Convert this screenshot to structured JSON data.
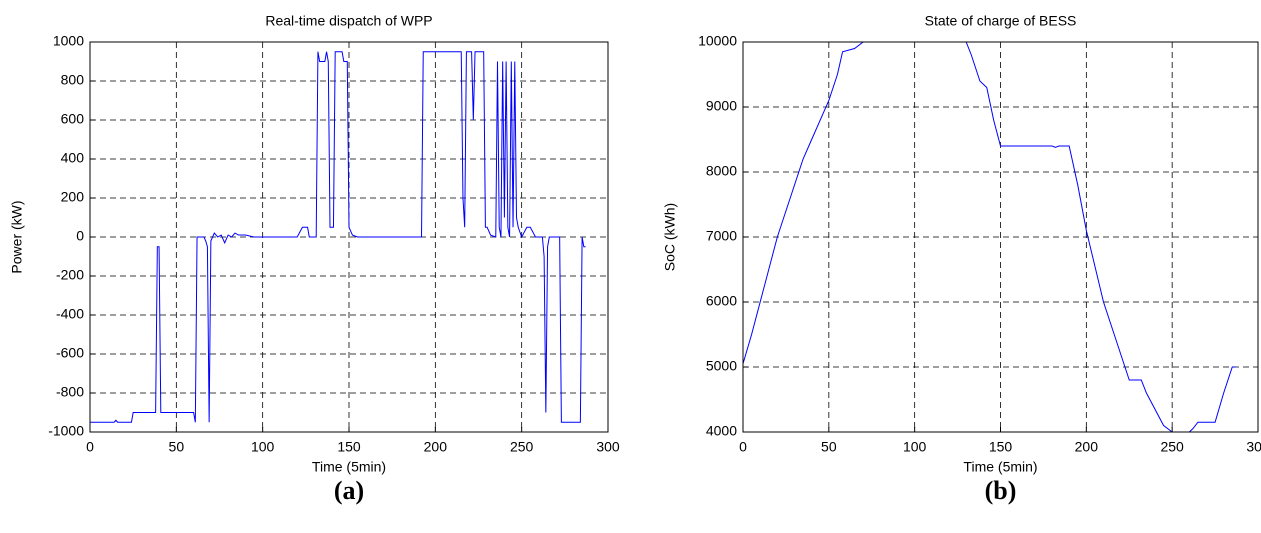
{
  "chart_data": [
    {
      "type": "line",
      "title": "Real-time dispatch of WPP",
      "xlabel": "Time (5min)",
      "ylabel": "Power (kW)",
      "caption": "(a)",
      "xlim": [
        0,
        300
      ],
      "xticks": [
        0,
        50,
        100,
        150,
        200,
        250,
        300
      ],
      "ylim": [
        -1000,
        1000
      ],
      "yticks": [
        -1000,
        -800,
        -600,
        -400,
        -200,
        0,
        200,
        400,
        600,
        800,
        1000
      ],
      "grid": true,
      "series": [
        {
          "color": "#0000ff",
          "x": [
            0,
            14,
            15,
            16,
            24,
            25,
            38,
            39,
            40,
            41,
            60,
            61,
            62,
            66,
            67,
            68,
            69,
            70,
            71,
            72,
            74,
            76,
            78,
            80,
            82,
            84,
            86,
            90,
            95,
            120,
            123,
            126,
            127,
            131,
            132,
            133,
            136,
            137,
            138,
            139,
            141,
            142,
            146,
            147,
            149,
            150,
            151,
            152,
            155,
            192,
            193,
            215,
            216,
            217,
            218,
            221,
            222,
            223,
            228,
            229,
            230,
            232,
            235,
            236,
            237,
            238,
            239,
            240,
            241,
            242,
            243,
            244,
            245,
            246,
            247,
            248,
            250,
            253,
            255,
            258,
            262,
            263,
            264,
            265,
            266,
            272,
            273,
            284,
            285,
            286,
            287
          ],
          "values": [
            -950,
            -950,
            -940,
            -950,
            -950,
            -900,
            -900,
            -50,
            -50,
            -900,
            -900,
            -950,
            0,
            0,
            -20,
            -50,
            -950,
            -20,
            0,
            20,
            0,
            10,
            -30,
            10,
            0,
            20,
            10,
            10,
            0,
            0,
            50,
            50,
            0,
            0,
            950,
            900,
            900,
            950,
            900,
            50,
            50,
            950,
            950,
            900,
            900,
            50,
            30,
            10,
            0,
            0,
            950,
            950,
            200,
            50,
            950,
            950,
            600,
            950,
            950,
            50,
            50,
            10,
            0,
            900,
            50,
            0,
            900,
            100,
            900,
            50,
            0,
            900,
            50,
            900,
            100,
            50,
            0,
            50,
            50,
            0,
            0,
            -100,
            -900,
            -50,
            0,
            0,
            -950,
            -950,
            0,
            -50,
            -50
          ]
        }
      ]
    },
    {
      "type": "line",
      "title": "State of charge of BESS",
      "xlabel": "Time (5min)",
      "ylabel": "SoC (kWh)",
      "caption": "(b)",
      "xlim": [
        0,
        300
      ],
      "xticks": [
        0,
        50,
        100,
        150,
        200,
        250,
        300
      ],
      "ylim": [
        4000,
        10000
      ],
      "yticks": [
        4000,
        5000,
        6000,
        7000,
        8000,
        9000,
        10000
      ],
      "grid": true,
      "series": [
        {
          "color": "#0000ff",
          "x": [
            0,
            5,
            10,
            20,
            30,
            35,
            40,
            50,
            55,
            58,
            65,
            70,
            130,
            133,
            138,
            142,
            146,
            150,
            180,
            182,
            184,
            190,
            195,
            200,
            210,
            220,
            225,
            232,
            235,
            245,
            250,
            260,
            262,
            265,
            275,
            280,
            285,
            287
          ],
          "values": [
            5050,
            5500,
            6000,
            7000,
            7800,
            8200,
            8500,
            9100,
            9500,
            9850,
            9900,
            10000,
            10000,
            9800,
            9400,
            9300,
            8800,
            8400,
            8400,
            8380,
            8400,
            8400,
            7800,
            7100,
            6000,
            5200,
            4800,
            4800,
            4600,
            4100,
            4000,
            4000,
            4050,
            4150,
            4150,
            4600,
            5000,
            5000
          ]
        }
      ]
    }
  ]
}
